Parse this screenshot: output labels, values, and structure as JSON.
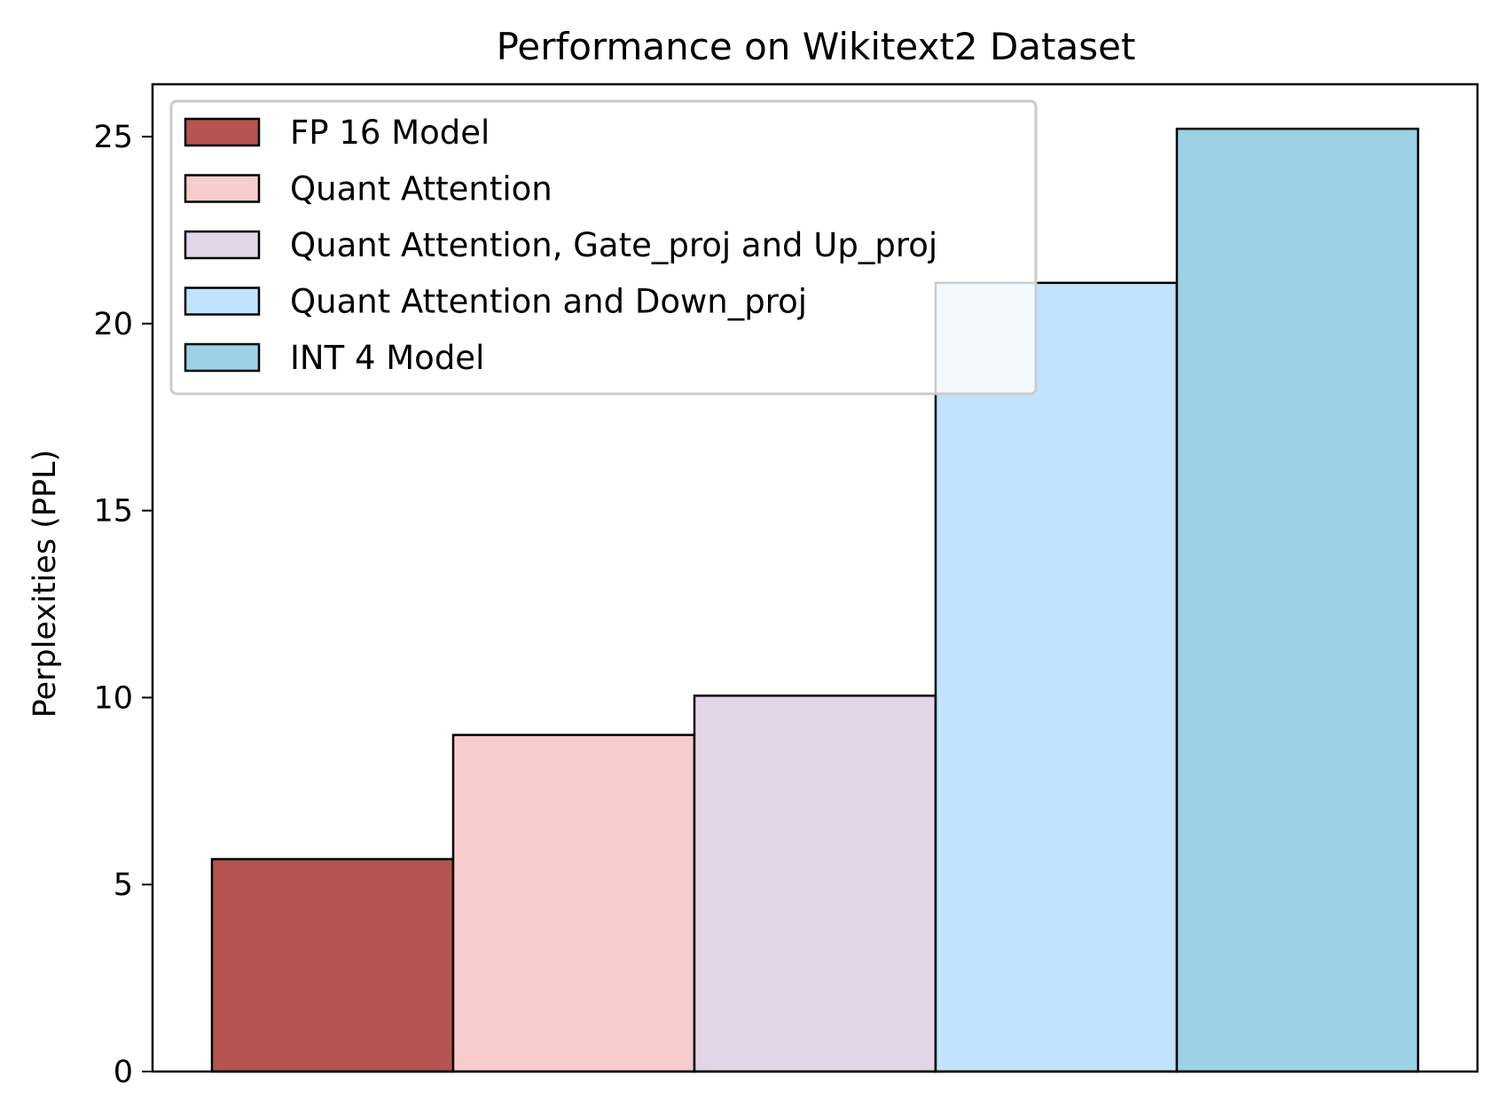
{
  "chart_data": {
    "type": "bar",
    "title": "Performance on Wikitext2 Dataset",
    "xlabel": "",
    "ylabel": "Perplexities (PPL)",
    "ylim": [
      0,
      26.4
    ],
    "yticks": [
      0,
      5,
      10,
      15,
      20,
      25
    ],
    "grid": false,
    "legend_position": "top-left",
    "series": [
      {
        "name": "FP 16 Model",
        "value": 5.68,
        "color": "#b55450"
      },
      {
        "name": "Quant Attention",
        "value": 9.0,
        "color": "#f6cdcc"
      },
      {
        "name": "Quant Attention, Gate_proj and Up_proj",
        "value": 10.05,
        "color": "#e1d5e7"
      },
      {
        "name": "Quant Attention and Down_proj",
        "value": 21.09,
        "color": "#c1e3fd"
      },
      {
        "name": "INT 4 Model",
        "value": 25.21,
        "color": "#9cd1e6"
      }
    ]
  }
}
